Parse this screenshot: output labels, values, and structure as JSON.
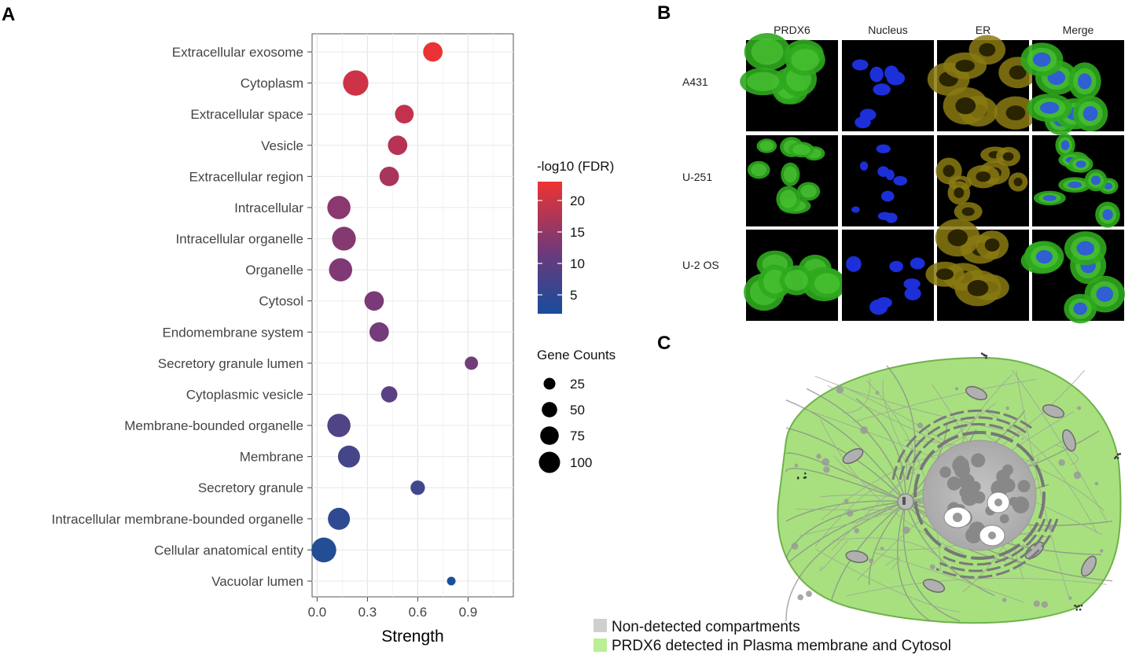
{
  "panels": {
    "a": "A",
    "b": "B",
    "c": "C"
  },
  "chart_data": {
    "type": "scatter",
    "xlabel": "Strength",
    "xlim": [
      -0.03,
      1.17
    ],
    "xticks": [
      0.0,
      0.3,
      0.6,
      0.9
    ],
    "xtick_labels": [
      "0.0",
      "0.3",
      "0.6",
      "0.9"
    ],
    "categories": [
      "Extracellular exosome",
      "Cytoplasm",
      "Extracellular space",
      "Vesicle",
      "Extracellular region",
      "Intracellular",
      "Intracellular organelle",
      "Organelle",
      "Cytosol",
      "Endomembrane system",
      "Secretory granule lumen",
      "Cytoplasmic vesicle",
      "Membrane-bounded organelle",
      "Membrane",
      "Secretory granule",
      "Intracellular membrane-bounded organelle",
      "Cellular anatomical entity",
      "Vacuolar lumen"
    ],
    "strength": [
      0.69,
      0.23,
      0.52,
      0.48,
      0.43,
      0.13,
      0.16,
      0.14,
      0.34,
      0.37,
      0.92,
      0.43,
      0.13,
      0.19,
      0.6,
      0.13,
      0.04,
      0.8
    ],
    "fdr_log10": [
      22.5,
      19.0,
      17.5,
      16.3,
      15.0,
      12.5,
      12.0,
      11.5,
      11.0,
      10.5,
      10.2,
      8.0,
      7.0,
      6.0,
      5.5,
      4.0,
      2.8,
      2.0
    ],
    "gene_counts": [
      55,
      105,
      50,
      55,
      55,
      85,
      90,
      85,
      55,
      55,
      20,
      35,
      85,
      75,
      25,
      75,
      100,
      5
    ],
    "color_legend": {
      "title": "-log10 (FDR)",
      "ticks": [
        5,
        10,
        15,
        20
      ],
      "range": [
        2,
        23
      ]
    },
    "size_legend": {
      "title": "Gene Counts",
      "values": [
        25,
        50,
        75,
        100
      ]
    }
  },
  "panel_b": {
    "columns": [
      "PRDX6",
      "Nucleus",
      "ER",
      "Merge"
    ],
    "rows": [
      "A431",
      "U-251",
      "U-2 OS"
    ]
  },
  "panel_c": {
    "legend": [
      {
        "label": "Non-detected compartments",
        "color": "#cfcfcf"
      },
      {
        "label": "PRDX6 detected in Plasma membrane and Cytosol",
        "color": "#b9ef95"
      }
    ]
  },
  "colors": {
    "low": "#1b4f98",
    "mid": "#7a3a78",
    "high": "#e8353a",
    "cell_fill": "#a8e07f",
    "cell_stroke": "#7abf56"
  }
}
